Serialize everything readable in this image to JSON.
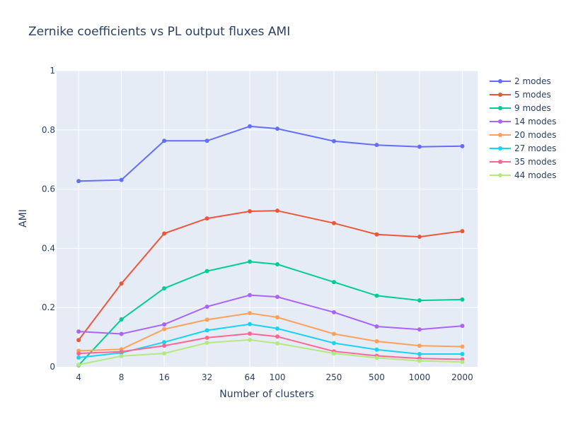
{
  "chart_data": {
    "type": "line",
    "title": "Zernike coefficients vs PL output fluxes AMI",
    "xlabel": "Number of clusters",
    "ylabel": "AMI",
    "x_scale": "log",
    "x": [
      4,
      8,
      16,
      32,
      64,
      100,
      250,
      500,
      1000,
      2000
    ],
    "x_tick_labels": [
      "4",
      "8",
      "16",
      "32",
      "64",
      "100",
      "250",
      "500",
      "1000",
      "2000"
    ],
    "ylim": [
      0,
      1
    ],
    "y_ticks": [
      0,
      0.2,
      0.4,
      0.6,
      0.8,
      1
    ],
    "y_tick_labels": [
      "0",
      "0.2",
      "0.4",
      "0.6",
      "0.8",
      "1"
    ],
    "grid": true,
    "legend_position": "right",
    "series": [
      {
        "name": "2 modes",
        "color": "#636efa",
        "values": [
          0.627,
          0.631,
          0.763,
          0.763,
          0.812,
          0.804,
          0.762,
          0.749,
          0.743,
          0.745
        ]
      },
      {
        "name": "5 modes",
        "color": "#EF553B",
        "values": [
          0.09,
          0.281,
          0.45,
          0.501,
          0.525,
          0.527,
          0.485,
          0.447,
          0.439,
          0.458
        ]
      },
      {
        "name": "9 modes",
        "color": "#00cc96",
        "values": [
          0.005,
          0.16,
          0.265,
          0.323,
          0.355,
          0.346,
          0.286,
          0.24,
          0.224,
          0.227
        ]
      },
      {
        "name": "14 modes",
        "color": "#ab63fa",
        "values": [
          0.119,
          0.111,
          0.143,
          0.203,
          0.242,
          0.236,
          0.184,
          0.136,
          0.126,
          0.138
        ]
      },
      {
        "name": "20 modes",
        "color": "#FFA15A",
        "values": [
          0.054,
          0.059,
          0.127,
          0.159,
          0.181,
          0.167,
          0.111,
          0.086,
          0.071,
          0.068
        ]
      },
      {
        "name": "27 modes",
        "color": "#19d3f3",
        "values": [
          0.031,
          0.047,
          0.083,
          0.123,
          0.144,
          0.129,
          0.08,
          0.058,
          0.043,
          0.043
        ]
      },
      {
        "name": "35 modes",
        "color": "#FF6692",
        "values": [
          0.045,
          0.051,
          0.071,
          0.098,
          0.112,
          0.102,
          0.052,
          0.037,
          0.028,
          0.025
        ]
      },
      {
        "name": "44 modes",
        "color": "#B6E880",
        "values": [
          0.007,
          0.036,
          0.045,
          0.081,
          0.091,
          0.079,
          0.045,
          0.03,
          0.02,
          0.016
        ]
      }
    ]
  }
}
